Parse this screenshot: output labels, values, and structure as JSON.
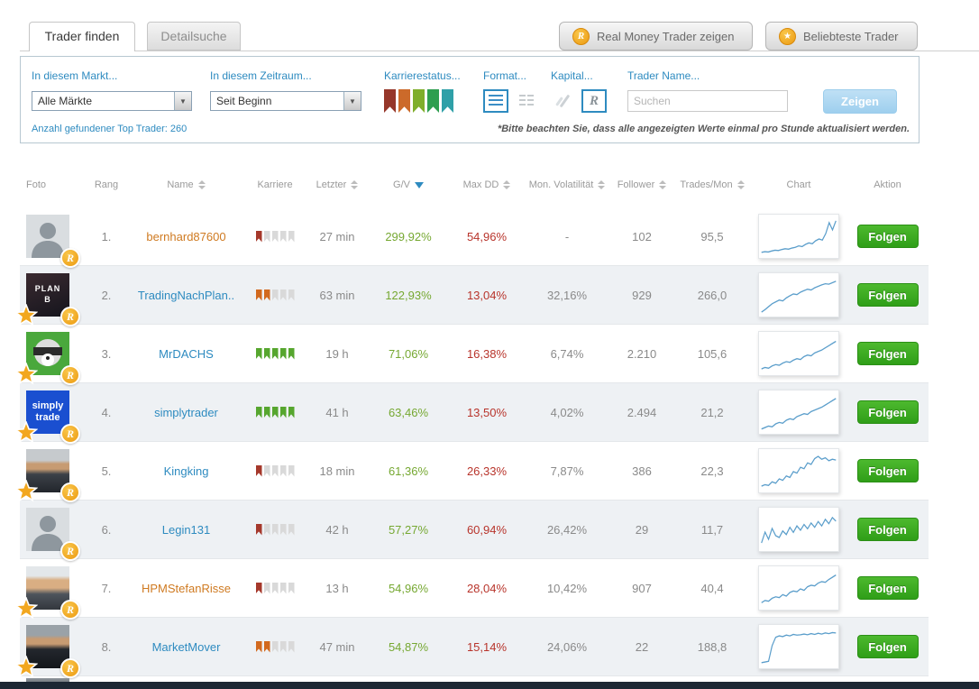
{
  "badge_r_label": "R",
  "tabs": {
    "find": "Trader finden",
    "detail": "Detailsuche"
  },
  "top_buttons": {
    "real_money": "Real Money Trader zeigen",
    "popular": "Beliebteste Trader"
  },
  "filters": {
    "market_label": "In diesem Markt...",
    "market_value": "Alle Märkte",
    "period_label": "In diesem Zeitraum...",
    "period_value": "Seit Beginn",
    "career_label": "Karrierestatus...",
    "career_colors": [
      "#96372a",
      "#cc6a2a",
      "#7fae2a",
      "#2e9e4f",
      "#2fa0a8"
    ],
    "format_label": "Format...",
    "capital_label": "Kapital...",
    "trader_name_label": "Trader Name...",
    "search_placeholder": "Suchen",
    "show_button": "Zeigen",
    "results_count": "Anzahl gefundener Top Trader: 260",
    "note": "*Bitte beachten Sie, dass alle angezeigten Werte einmal pro Stunde aktualisiert werden."
  },
  "table": {
    "follow_label": "Folgen",
    "columns": [
      {
        "label": "Foto",
        "sortable": false
      },
      {
        "label": "Rang",
        "sortable": false
      },
      {
        "label": "Name",
        "sortable": true
      },
      {
        "label": "Karriere",
        "sortable": false
      },
      {
        "label": "Letzter",
        "sortable": true
      },
      {
        "label": "G/V",
        "sortable": true,
        "sorted": "desc"
      },
      {
        "label": "Max DD",
        "sortable": true
      },
      {
        "label": "Mon. Volatilität",
        "sortable": true
      },
      {
        "label": "Follower",
        "sortable": true
      },
      {
        "label": "Trades/Mon",
        "sortable": true
      },
      {
        "label": "Chart",
        "sortable": false
      },
      {
        "label": "Aktion",
        "sortable": false
      }
    ],
    "rows": [
      {
        "rank": "1.",
        "name": "bernhard87600",
        "name_color": "#cf7a21",
        "career": {
          "filled": 1,
          "total": 5,
          "color": "#a5382b"
        },
        "letzter": "27 min",
        "gv": "299,92%",
        "max_dd": "54,96%",
        "volatility": "-",
        "follower": "102",
        "trades_mon": "95,5",
        "badges": {
          "star": false,
          "r": true
        },
        "photo": {
          "type": "silhouette"
        },
        "spark": [
          8,
          10,
          9,
          12,
          14,
          13,
          16,
          18,
          17,
          20,
          22,
          26,
          24,
          30,
          34,
          32,
          40,
          45,
          42,
          60,
          90,
          70,
          95
        ]
      },
      {
        "rank": "2.",
        "name": "TradingNachPlan..",
        "name_color": "#2e8bc0",
        "career": {
          "filled": 2,
          "total": 5,
          "color": "#d2691e"
        },
        "letzter": "63 min",
        "gv": "122,93%",
        "max_dd": "13,04%",
        "volatility": "32,16%",
        "follower": "929",
        "trades_mon": "266,0",
        "badges": {
          "star": true,
          "r": true
        },
        "photo": {
          "type": "planb",
          "text": "PLAN B"
        },
        "spark": [
          5,
          12,
          20,
          28,
          33,
          38,
          36,
          44,
          50,
          55,
          53,
          60,
          64,
          68,
          66,
          72,
          76,
          80,
          83,
          82,
          86,
          90
        ]
      },
      {
        "rank": "3.",
        "name": "MrDACHS",
        "name_color": "#2e8bc0",
        "career": {
          "filled": 5,
          "total": 5,
          "color": "#56a62e"
        },
        "letzter": "19 h",
        "gv": "71,06%",
        "max_dd": "16,38%",
        "volatility": "6,74%",
        "follower": "2.210",
        "trades_mon": "105,6",
        "badges": {
          "star": true,
          "r": true
        },
        "photo": {
          "type": "cartoon"
        },
        "spark": [
          10,
          14,
          12,
          18,
          22,
          20,
          26,
          30,
          28,
          34,
          38,
          36,
          44,
          48,
          46,
          54,
          58,
          62,
          68,
          74,
          80,
          86
        ]
      },
      {
        "rank": "4.",
        "name": "simplytrader",
        "name_color": "#2e8bc0",
        "career": {
          "filled": 5,
          "total": 5,
          "color": "#56a62e"
        },
        "letzter": "41 h",
        "gv": "63,46%",
        "max_dd": "13,50%",
        "volatility": "4,02%",
        "follower": "2.494",
        "trades_mon": "21,2",
        "badges": {
          "star": true,
          "r": true
        },
        "photo": {
          "type": "simply",
          "text": "simply trade"
        },
        "spark": [
          6,
          10,
          14,
          12,
          20,
          24,
          22,
          30,
          34,
          32,
          40,
          44,
          48,
          46,
          54,
          58,
          62,
          66,
          72,
          78,
          84,
          90
        ]
      },
      {
        "rank": "5.",
        "name": "Kingking",
        "name_color": "#2e8bc0",
        "career": {
          "filled": 1,
          "total": 5,
          "color": "#a5382b"
        },
        "letzter": "18 min",
        "gv": "61,36%",
        "max_dd": "26,33%",
        "volatility": "7,87%",
        "follower": "386",
        "trades_mon": "22,3",
        "badges": {
          "star": true,
          "r": true
        },
        "photo": {
          "type": "suit"
        },
        "spark": [
          10,
          14,
          12,
          22,
          18,
          30,
          26,
          38,
          34,
          50,
          46,
          62,
          58,
          74,
          70,
          86,
          92,
          84,
          88,
          80,
          84,
          82
        ]
      },
      {
        "rank": "6.",
        "name": "Legin131",
        "name_color": "#2e8bc0",
        "career": {
          "filled": 1,
          "total": 5,
          "color": "#a5382b"
        },
        "letzter": "42 h",
        "gv": "57,27%",
        "max_dd": "60,94%",
        "volatility": "26,42%",
        "follower": "29",
        "trades_mon": "11,7",
        "badges": {
          "star": false,
          "r": true
        },
        "photo": {
          "type": "silhouette"
        },
        "spark": [
          15,
          45,
          25,
          55,
          35,
          30,
          48,
          38,
          58,
          44,
          62,
          50,
          66,
          54,
          70,
          58,
          74,
          62,
          80,
          68,
          85,
          75
        ]
      },
      {
        "rank": "7.",
        "name": "HPMStefanRisse",
        "name_color": "#cf7a21",
        "career": {
          "filled": 1,
          "total": 5,
          "color": "#a5382b"
        },
        "letzter": "13 h",
        "gv": "54,96%",
        "max_dd": "28,04%",
        "volatility": "10,42%",
        "follower": "907",
        "trades_mon": "40,4",
        "badges": {
          "star": true,
          "r": true
        },
        "photo": {
          "type": "portrait"
        },
        "spark": [
          12,
          18,
          16,
          24,
          28,
          26,
          34,
          30,
          40,
          44,
          42,
          50,
          46,
          56,
          60,
          58,
          66,
          70,
          68,
          76,
          82,
          88
        ]
      },
      {
        "rank": "8.",
        "name": "MarketMover",
        "name_color": "#2e8bc0",
        "career": {
          "filled": 2,
          "total": 5,
          "color": "#d2691e"
        },
        "letzter": "47 min",
        "gv": "54,87%",
        "max_dd": "15,14%",
        "volatility": "24,06%",
        "follower": "22",
        "trades_mon": "188,8",
        "badges": {
          "star": true,
          "r": true
        },
        "photo": {
          "type": "suit2"
        },
        "spark": [
          8,
          10,
          12,
          55,
          78,
          82,
          80,
          84,
          82,
          86,
          84,
          85,
          87,
          85,
          88,
          86,
          89,
          87,
          90,
          88,
          91,
          90
        ]
      }
    ]
  }
}
